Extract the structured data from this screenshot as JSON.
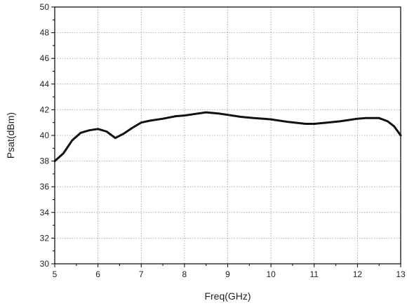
{
  "chart_data": {
    "type": "line",
    "title": "",
    "xlabel": "Freq(GHz)",
    "ylabel": "Psat(dBm)",
    "xlim": [
      5,
      13
    ],
    "ylim": [
      30,
      50
    ],
    "x_ticks": [
      5,
      6,
      7,
      8,
      9,
      10,
      11,
      12,
      13
    ],
    "y_ticks": [
      30,
      32,
      34,
      36,
      38,
      40,
      42,
      44,
      46,
      48,
      50
    ],
    "x_tick_labels": [
      "5",
      "6",
      "7",
      "8",
      "9",
      "10",
      "11",
      "12",
      "13"
    ],
    "y_tick_labels": [
      "30",
      "32",
      "34",
      "36",
      "38",
      "40",
      "42",
      "44",
      "46",
      "48",
      "50"
    ],
    "grid": true,
    "legend": "none",
    "series": [
      {
        "color": "#111111",
        "x": [
          5.0,
          5.2,
          5.4,
          5.6,
          5.8,
          6.0,
          6.2,
          6.4,
          6.6,
          6.8,
          7.0,
          7.2,
          7.5,
          7.8,
          8.0,
          8.2,
          8.5,
          8.8,
          9.0,
          9.3,
          9.6,
          10.0,
          10.4,
          10.8,
          11.0,
          11.3,
          11.6,
          12.0,
          12.2,
          12.5,
          12.7,
          12.85,
          13.0
        ],
        "y": [
          38.0,
          38.6,
          39.6,
          40.2,
          40.4,
          40.5,
          40.3,
          39.8,
          40.15,
          40.6,
          41.0,
          41.15,
          41.3,
          41.5,
          41.55,
          41.65,
          41.8,
          41.7,
          41.6,
          41.45,
          41.35,
          41.25,
          41.05,
          40.9,
          40.9,
          41.0,
          41.1,
          41.3,
          41.35,
          41.35,
          41.1,
          40.7,
          40.0
        ]
      }
    ]
  }
}
